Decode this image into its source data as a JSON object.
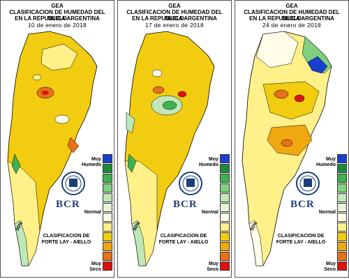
{
  "title_line1": "GEA",
  "title_line2": "CLASIFICACION DE HUMEDAD DEL SUELO",
  "title_line3": "EN LA REPUBLICA ARGENTINA",
  "panels": [
    {
      "date": "10 de enero de 2018",
      "dry_spots": 3,
      "wet_northeast": false
    },
    {
      "date": "17 de enero de 2018",
      "dry_spots": 2,
      "wet_northeast": false
    },
    {
      "date": "24 de enero de 2018",
      "dry_spots": 4,
      "wet_northeast": true
    }
  ],
  "legend": {
    "top_label_line1": "Muy",
    "top_label_line2": "Humedo",
    "normal_label": "Normal",
    "bottom_label_line1": "Muy",
    "bottom_label_line2": "Seco",
    "colors": [
      "#1a3fd0",
      "#1c8c3a",
      "#3fb24f",
      "#7fd07f",
      "#bfe8b8",
      "#e8f4d8",
      "#fffde8",
      "#fff08a",
      "#f2cc10",
      "#f0a810",
      "#e87018",
      "#e01010"
    ]
  },
  "logo_text": "BCR",
  "classification_line1": "CLASIFICACION DE",
  "classification_line2": "FORTE LAY - AIELLO",
  "contour_label": "50%",
  "colors": {
    "dry": "#f2cc10",
    "moderate": "#fff08a",
    "normal": "#fffde8",
    "wet": "#7fd07f",
    "very_dry": "#e01010",
    "very_wet": "#1a3fd0"
  }
}
